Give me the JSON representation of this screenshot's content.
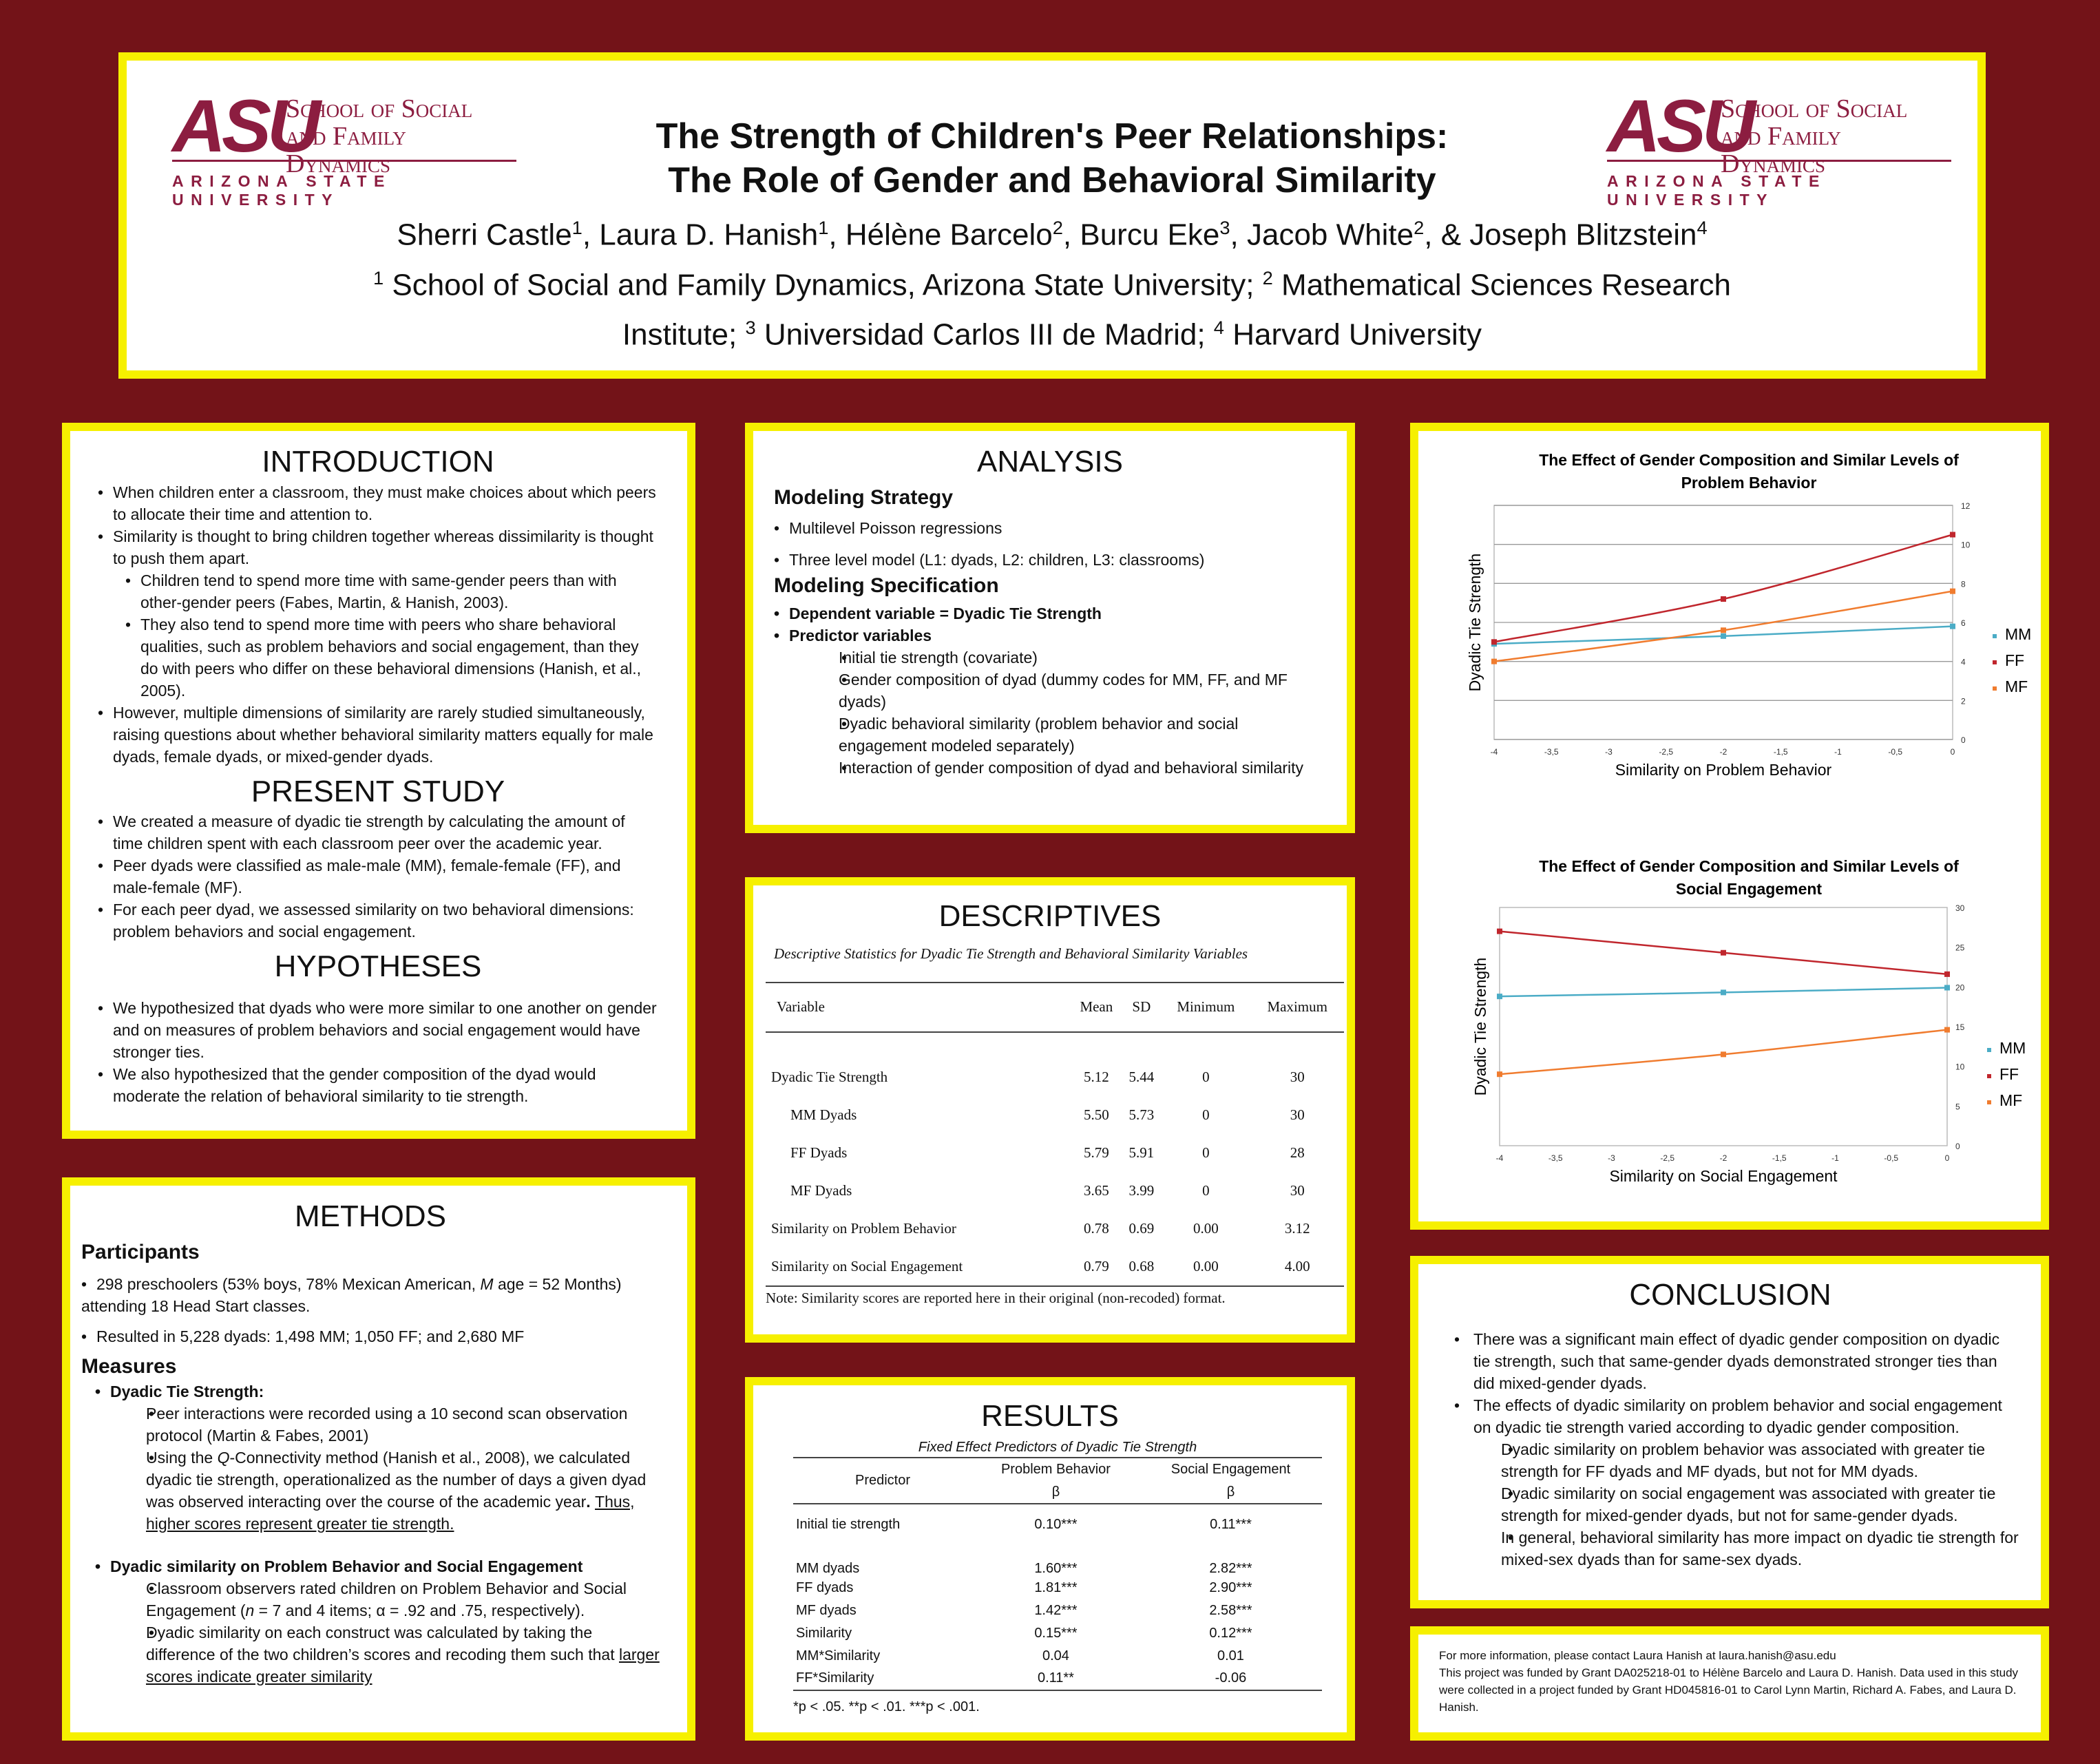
{
  "header": {
    "logo_asu": "ASU",
    "logo_school_1": "School of Social",
    "logo_school_2": "and Family Dynamics",
    "logo_university": "ARIZONA STATE UNIVERSITY",
    "title_line1": "The Strength of Children's Peer Relationships:",
    "title_line2": "The Role of Gender and Behavioral Similarity",
    "authors": [
      {
        "name": "Sherri Castle",
        "sup": "1",
        "sep": ", "
      },
      {
        "name": "Laura D. Hanish",
        "sup": "1",
        "sep": ", "
      },
      {
        "name": "Hélène Barcelo",
        "sup": "2",
        "sep": ", "
      },
      {
        "name": "Burcu Eke",
        "sup": "3",
        "sep": ", "
      },
      {
        "name": "Jacob White",
        "sup": "2",
        "sep": ", & "
      },
      {
        "name": "Joseph Blitzstein",
        "sup": "4",
        "sep": ""
      }
    ],
    "affil_line1": {
      "s1": "1",
      "t1": " School of Social and Family Dynamics, Arizona State University; ",
      "s2": "2",
      "t2": " Mathematical Sciences Research"
    },
    "affil_line2": {
      "t0": "Institute; ",
      "s3": "3",
      "t3": " Universidad Carlos III de Madrid; ",
      "s4": "4",
      "t4": " Harvard University"
    }
  },
  "introduction": {
    "title": "INTRODUCTION",
    "bullets": [
      {
        "level": 0,
        "text": "When children enter a classroom, they must make choices about which peers to allocate their time and attention to."
      },
      {
        "level": 0,
        "text": "Similarity is thought to bring children together whereas dissimilarity is thought to push them apart."
      },
      {
        "level": 1,
        "text": "Children tend to spend more time with same-gender peers than with other-gender peers (Fabes, Martin, & Hanish, 2003)."
      },
      {
        "level": 1,
        "text": "They also tend to spend more time with peers who share behavioral qualities, such as problem behaviors and social engagement, than they do with peers who differ on these behavioral dimensions (Hanish, et al., 2005)."
      },
      {
        "level": 0,
        "text": "However, multiple dimensions of similarity are rarely studied simultaneously, raising questions about whether behavioral similarity matters equally for male dyads, female dyads, or mixed-gender dyads."
      }
    ]
  },
  "present_study": {
    "title": "PRESENT STUDY",
    "bullets": [
      "We created a measure of dyadic tie strength by calculating the amount of time children spent with each classroom peer over the academic year.",
      "Peer dyads were classified as male-male (MM), female-female (FF), and male-female (MF).",
      "For each peer dyad, we assessed similarity on two behavioral dimensions: problem behaviors and social engagement."
    ]
  },
  "hypotheses": {
    "title": "HYPOTHESES",
    "bullets": [
      "We hypothesized that dyads who were more similar to one another on gender and on measures of problem behaviors and social engagement would have stronger ties.",
      "We also hypothesized that the gender composition of the dyad would moderate the relation of behavioral similarity to tie strength."
    ]
  },
  "methods": {
    "title": "METHODS",
    "participants_heading": "Participants",
    "p1_a": "298 preschoolers (53% boys, 78% Mexican American, ",
    "p1_m": "M",
    "p1_b": " age = 52 Months) attending 18 Head Start classes.",
    "p2": "Resulted in 5,228 dyads: 1,498 MM; 1,050 FF; and 2,680 MF",
    "measures_heading": "Measures",
    "dts_heading": "Dyadic Tie Strength:",
    "dts_1": "Peer interactions were recorded using a 10 second scan observation protocol (Martin & Fabes, 2001)",
    "dts_2_a": "Using the ",
    "dts_2_q": "Q",
    "dts_2_b": "-Connectivity method (Hanish et al., 2008), we calculated dyadic tie strength, operationalized as the number of days a given dyad was observed interacting over the course of the academic year",
    "dts_2_dot": ". ",
    "dts_2_u": "Thus, higher scores represent greater tie strength.",
    "ds_heading": "Dyadic similarity on Problem Behavior and Social Engagement",
    "ds_1_a": "Classroom observers rated children on Problem Behavior and Social Engagement (",
    "ds_1_n": "n",
    "ds_1_b": " = 7 and 4 items; α = .92 and .75, respectively).",
    "ds_2_a": "Dyadic similarity on each construct was calculated by taking the difference of the two children’s scores and recoding them such that ",
    "ds_2_u": "larger scores indicate greater similarity"
  },
  "analysis": {
    "title": "ANALYSIS",
    "strategy_heading": "Modeling Strategy",
    "strategy": [
      "Multilevel Poisson regressions",
      "Three level model (L1: dyads, L2: children, L3: classrooms)"
    ],
    "spec_heading": "Modeling Specification",
    "dv": "Dependent variable = Dyadic Tie Strength",
    "pv": "Predictor variables",
    "predictors": [
      "Initial tie strength (covariate)",
      "Gender composition of dyad (dummy codes for MM, FF, and MF dyads)",
      "Dyadic behavioral similarity (problem behavior and social engagement modeled separately)",
      "Interaction of gender composition of dyad and behavioral similarity"
    ]
  },
  "descriptives": {
    "title": "DESCRIPTIVES",
    "caption": "Descriptive Statistics for Dyadic Tie Strength and Behavioral Similarity Variables",
    "headers": [
      "Variable",
      "Mean",
      "SD",
      "Minimum",
      "Maximum"
    ],
    "rows": [
      [
        "Dyadic Tie Strength",
        "5.12",
        "5.44",
        "0",
        "30"
      ],
      [
        "MM Dyads",
        "5.50",
        "5.73",
        "0",
        "30"
      ],
      [
        "FF Dyads",
        "5.79",
        "5.91",
        "0",
        "28"
      ],
      [
        "MF Dyads",
        "3.65",
        "3.99",
        "0",
        "30"
      ],
      [
        "Similarity on Problem Behavior",
        "0.78",
        "0.69",
        "0.00",
        "3.12"
      ],
      [
        "Similarity on Social Engagement",
        "0.79",
        "0.68",
        "0.00",
        "4.00"
      ]
    ],
    "note": "Note: Similarity scores are reported here in their original (non-recoded) format."
  },
  "results": {
    "title": "RESULTS",
    "caption": "Fixed Effect Predictors of Dyadic Tie Strength",
    "h_predictor": "Predictor",
    "h_pb": "Problem Behavior",
    "h_se": "Social Engagement",
    "h_beta": "β",
    "rows": [
      [
        "Initial tie strength",
        "0.10***",
        "0.11***"
      ],
      [
        "MM dyads",
        "1.60***",
        "2.82***"
      ],
      [
        "FF dyads",
        "1.81***",
        "2.90***"
      ],
      [
        "MF dyads",
        "1.42***",
        "2.58***"
      ],
      [
        "Similarity",
        "0.15***",
        "0.12***"
      ],
      [
        "MM*Similarity",
        "0.04",
        "0.01"
      ],
      [
        "FF*Similarity",
        "0.11**",
        "-0.06"
      ]
    ],
    "note": "*p < .05. **p < .01. ***p < .001."
  },
  "chart_data": [
    {
      "type": "line",
      "title": "The Effect of Gender Composition and Similar Levels of Problem Behavior",
      "xlabel": "Similarity on Problem Behavior",
      "ylabel": "Dyadic Tie Strength",
      "xlim": [
        -4,
        0
      ],
      "ylim": [
        0,
        12
      ],
      "x_ticks": [
        "-4",
        "-3,5",
        "-3",
        "-2,5",
        "-2",
        "-1,5",
        "-1",
        "-0,5",
        "0"
      ],
      "y_ticks": [
        "0",
        "2",
        "4",
        "6",
        "8",
        "10",
        "12"
      ],
      "x": [
        -4,
        -2,
        0
      ],
      "series": [
        {
          "name": "MM",
          "color": "#4bacc6",
          "marker": "diamond",
          "values": [
            4.9,
            5.3,
            5.8
          ]
        },
        {
          "name": "FF",
          "color": "#c0262d",
          "marker": "square",
          "values": [
            5.0,
            7.2,
            10.5
          ]
        },
        {
          "name": "MF",
          "color": "#f07c2f",
          "marker": "triangle",
          "values": [
            4.0,
            5.6,
            7.6
          ]
        }
      ],
      "legend": "right",
      "grid": true
    },
    {
      "type": "line",
      "title": "The Effect of Gender Composition and Similar Levels of Social Engagement",
      "xlabel": "Similarity on Social Engagement",
      "ylabel": "Dyadic Tie Strength",
      "xlim": [
        -4,
        0
      ],
      "ylim": [
        0,
        30
      ],
      "x_ticks": [
        "-4",
        "-3,5",
        "-3",
        "-2,5",
        "-2",
        "-1,5",
        "-1",
        "-0,5",
        "0"
      ],
      "y_ticks": [
        "0",
        "5",
        "10",
        "15",
        "20",
        "25",
        "30"
      ],
      "x": [
        -4,
        -2,
        0
      ],
      "series": [
        {
          "name": "MM",
          "color": "#4bacc6",
          "marker": "diamond",
          "values": [
            18.8,
            19.3,
            19.9
          ]
        },
        {
          "name": "FF",
          "color": "#c0262d",
          "marker": "square",
          "values": [
            27.0,
            24.3,
            21.6
          ]
        },
        {
          "name": "MF",
          "color": "#f07c2f",
          "marker": "triangle",
          "values": [
            9.0,
            11.5,
            14.6
          ]
        }
      ],
      "legend": "right",
      "grid": false
    }
  ],
  "conclusion": {
    "title": "CONCLUSION",
    "bullets": [
      {
        "level": 0,
        "text": "There was a significant main effect of dyadic gender composition on dyadic tie strength, such that same-gender dyads demonstrated stronger ties than did mixed-gender dyads."
      },
      {
        "level": 0,
        "text": "The effects of dyadic similarity on problem behavior and social engagement on dyadic tie strength varied according to dyadic gender composition."
      },
      {
        "level": 1,
        "text": "Dyadic similarity on problem behavior was associated with greater tie strength for FF dyads and MF dyads, but not for MM dyads."
      },
      {
        "level": 1,
        "text": "Dyadic similarity on social engagement was associated with greater tie strength for mixed-gender dyads, but not for same-gender dyads."
      },
      {
        "level": 1,
        "text": "In general, behavioral similarity has more impact on dyadic tie strength for mixed-sex dyads than for same-sex dyads."
      }
    ]
  },
  "footer": {
    "line1": "For more information, please contact Laura Hanish at laura.hanish@asu.edu",
    "line2": "This project was funded by Grant DA025218-01 to Hélène Barcelo and Laura D. Hanish. Data used in this study were collected in a project funded by Grant HD045816-01 to Carol Lynn Martin, Richard A. Fabes, and Laura D. Hanish."
  }
}
